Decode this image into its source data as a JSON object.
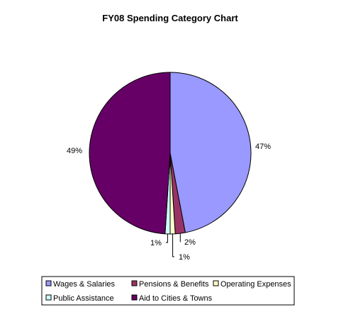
{
  "chart_data": {
    "type": "pie",
    "title": "FY08 Spending Category Chart",
    "categories": [
      "Wages & Salaries",
      "Pensions & Benefits",
      "Operating Expenses",
      "Public Assistance",
      "Aid to Cities & Towns"
    ],
    "values": [
      47,
      2,
      1,
      1,
      49
    ],
    "labels": [
      "47%",
      "2%",
      "1%",
      "1%",
      "49%"
    ],
    "colors": [
      "#9999ff",
      "#993366",
      "#ffffcc",
      "#ccffff",
      "#660066"
    ],
    "legend_position": "bottom"
  }
}
